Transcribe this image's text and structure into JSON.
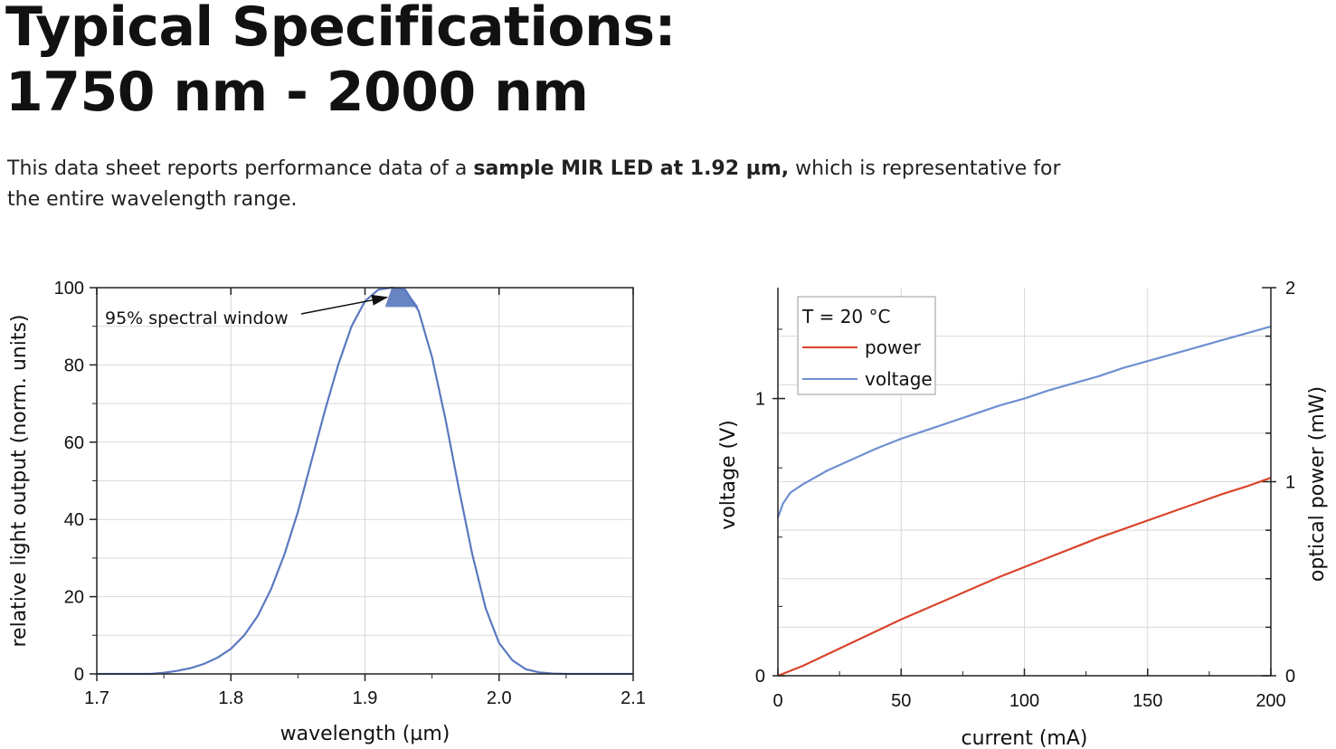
{
  "header": {
    "title_line1": "Typical Specifications:",
    "title_line2": "1750 nm - 2000 nm"
  },
  "intro": {
    "text_before": "This data sheet reports performance data of a ",
    "text_bold": "sample MIR LED at 1.92 µm,",
    "text_after": " which is representative for the entire wavelength range."
  },
  "colors": {
    "spectrum": "#5b78c0",
    "power": "#d9452b",
    "voltage": "#6f8fd0",
    "grid": "#d9d9d9",
    "axis": "#222222",
    "window_fill": "#4f6fb8"
  },
  "chart_data": [
    {
      "type": "line",
      "xlabel": "wavelength (µm)",
      "ylabel": "relative light output (norm. units)",
      "xlim": [
        1.7,
        2.1
      ],
      "ylim": [
        0,
        100
      ],
      "x_ticks": [
        "1.7",
        "1.8",
        "1.9",
        "2.0",
        "2.1"
      ],
      "y_ticks": [
        "0",
        "20",
        "40",
        "60",
        "80",
        "100"
      ],
      "grid": true,
      "annotations": [
        {
          "text": "95% spectral window",
          "x_from": 1.915,
          "x_to": 1.945,
          "y_level": 95
        }
      ],
      "series": [
        {
          "x": [
            1.7,
            1.72,
            1.74,
            1.75,
            1.76,
            1.77,
            1.78,
            1.79,
            1.8,
            1.81,
            1.82,
            1.83,
            1.84,
            1.85,
            1.86,
            1.87,
            1.88,
            1.89,
            1.9,
            1.91,
            1.92,
            1.93,
            1.94,
            1.95,
            1.96,
            1.97,
            1.98,
            1.99,
            2.0,
            2.01,
            2.02,
            2.03,
            2.04,
            2.05,
            2.07,
            2.1
          ],
          "y": [
            0,
            0,
            0,
            0.3,
            0.8,
            1.5,
            2.6,
            4.2,
            6.5,
            10,
            15,
            22,
            31,
            42,
            55,
            68,
            80,
            90,
            96.5,
            99.5,
            100,
            99.5,
            94,
            82,
            66,
            48,
            31,
            17,
            8,
            3.5,
            1.2,
            0.4,
            0.1,
            0,
            0,
            0
          ]
        }
      ]
    },
    {
      "type": "line",
      "legend_title": "T = 20 °C",
      "legend_position": "top-left",
      "xlabel": "current (mA)",
      "ylabel": "voltage (V)",
      "y2label": "optical power (mW)",
      "xlim": [
        0,
        200
      ],
      "ylim": [
        0,
        1.4
      ],
      "y2lim": [
        0,
        2
      ],
      "x_ticks": [
        "0",
        "50",
        "100",
        "150",
        "200"
      ],
      "y_ticks": [
        "0",
        "1"
      ],
      "y2_ticks": [
        "0",
        "1",
        "2"
      ],
      "grid": true,
      "series": [
        {
          "name": "power",
          "axis": "right",
          "x": [
            0,
            10,
            20,
            30,
            40,
            50,
            60,
            70,
            80,
            90,
            100,
            110,
            120,
            130,
            140,
            150,
            160,
            170,
            180,
            190,
            200
          ],
          "y": [
            0,
            0.05,
            0.11,
            0.17,
            0.23,
            0.29,
            0.345,
            0.4,
            0.455,
            0.51,
            0.56,
            0.61,
            0.66,
            0.71,
            0.755,
            0.8,
            0.845,
            0.89,
            0.935,
            0.975,
            1.02
          ]
        },
        {
          "name": "voltage",
          "axis": "left",
          "x": [
            0,
            2,
            5,
            10,
            20,
            30,
            40,
            50,
            60,
            70,
            80,
            90,
            100,
            110,
            120,
            130,
            140,
            150,
            160,
            170,
            180,
            190,
            200
          ],
          "y": [
            0.57,
            0.62,
            0.66,
            0.69,
            0.74,
            0.78,
            0.82,
            0.855,
            0.885,
            0.915,
            0.945,
            0.975,
            1.0,
            1.03,
            1.055,
            1.08,
            1.11,
            1.135,
            1.16,
            1.185,
            1.21,
            1.235,
            1.26
          ]
        }
      ]
    }
  ]
}
